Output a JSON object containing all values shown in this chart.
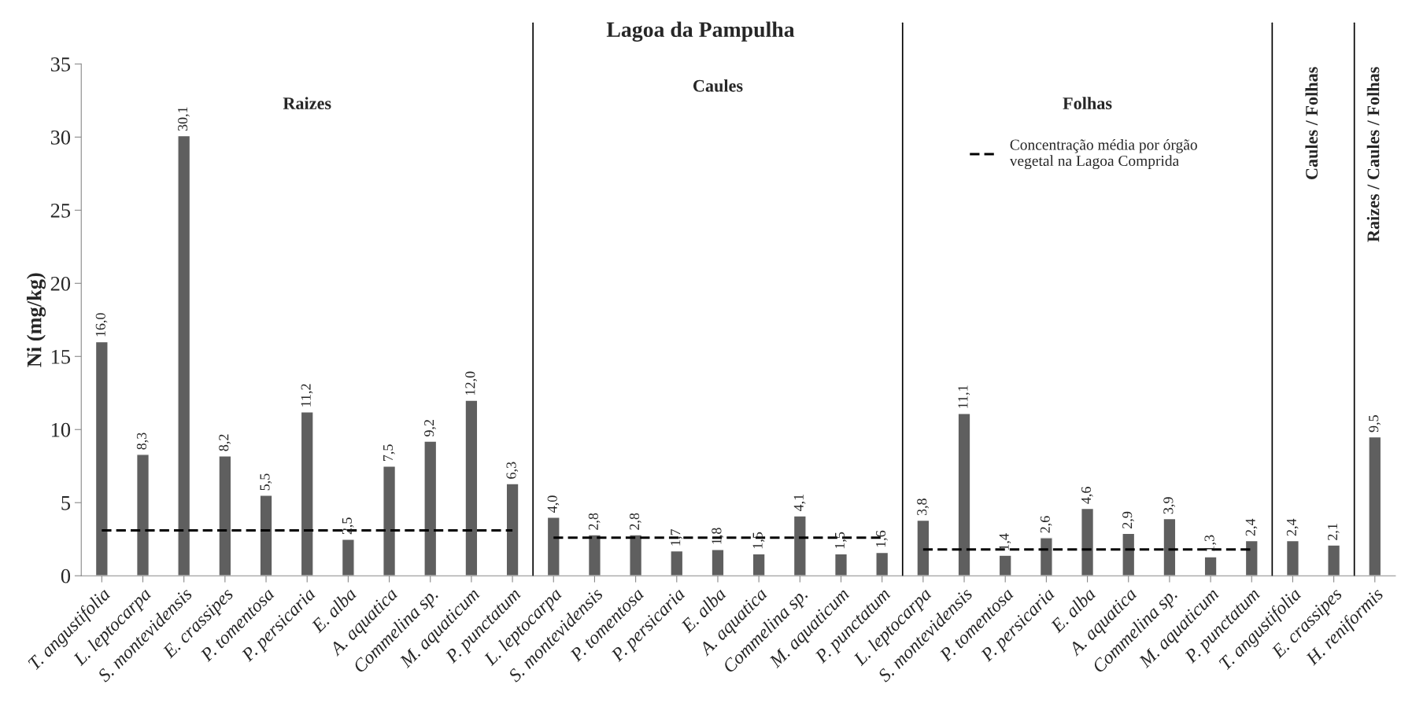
{
  "chart_data": {
    "type": "bar",
    "title": "Lagoa da Pampulha",
    "ylabel": "Ni (mg/kg)",
    "categories": [
      "T. angustifolia",
      "L. leptocarpa",
      "S. montevidensis",
      "E. crassipes",
      "P. tomentosa",
      "P. persicaria",
      "E. alba",
      "A. aquatica",
      "Commelina sp.",
      "M. aquaticum",
      "P. punctatum",
      "L. leptocarpa",
      "S. montevidensis",
      "P. tomentosa",
      "P. persicaria",
      "E. alba",
      "A. aquatica",
      "Commelina sp.",
      "M. aquaticum",
      "P. punctatum",
      "L. leptocarpa",
      "S. montevidensis",
      "P. tomentosa",
      "P. persicaria",
      "E. alba",
      "A. aquatica",
      "Commelina sp.",
      "M. aquaticum",
      "P. punctatum",
      "T. angustifolia",
      "E. crassipes",
      "H. reniformis"
    ],
    "series": [
      {
        "color": "#5f5f5f",
        "values": [
          16.0,
          8.3,
          30.1,
          8.2,
          5.5,
          11.2,
          2.5,
          7.5,
          9.2,
          12.0,
          6.3,
          4.0,
          2.8,
          2.8,
          1.7,
          1.8,
          1.5,
          4.1,
          1.5,
          1.6,
          3.8,
          11.1,
          1.4,
          2.6,
          4.6,
          2.9,
          3.9,
          1.3,
          2.4,
          2.4,
          2.1,
          9.5
        ],
        "value_labels": [
          "16,0",
          "8,3",
          "30,1",
          "8,2",
          "5,5",
          "11,2",
          "2,5",
          "7,5",
          "9,2",
          "12,0",
          "6,3",
          "4,0",
          "2,8",
          "2,8",
          "1,7",
          "1,8",
          "1,5",
          "4,1",
          "1,5",
          "1,6",
          "3,8",
          "11,1",
          "1,4",
          "2,6",
          "4,6",
          "2,9",
          "3,9",
          "1,3",
          "2,4",
          "2,4",
          "2,1",
          "9,5"
        ]
      },
      {
        "type": "line",
        "name": "Concentração média por órgão\nvegetal na Lagoa Comprida",
        "color": "#000000",
        "line_style": "dashed",
        "marker": "none",
        "values": [
          3.1,
          3.1,
          3.1,
          3.1,
          3.1,
          3.1,
          3.1,
          3.1,
          3.1,
          3.1,
          3.1,
          null,
          null,
          null,
          null,
          null,
          null,
          null,
          null,
          null,
          null,
          null,
          null,
          null,
          null,
          null,
          null,
          null,
          null,
          null,
          null,
          null
        ]
      },
      {
        "type": "line",
        "color": "#000000",
        "line_style": "dashed",
        "marker": "none",
        "values": [
          null,
          null,
          null,
          null,
          null,
          null,
          null,
          null,
          null,
          null,
          null,
          2.6,
          2.6,
          2.6,
          2.6,
          2.6,
          2.6,
          2.6,
          2.6,
          2.6,
          null,
          null,
          null,
          null,
          null,
          null,
          null,
          null,
          null,
          null,
          null,
          null
        ]
      },
      {
        "type": "line",
        "color": "#000000",
        "line_style": "dashed",
        "marker": "none",
        "values": [
          null,
          null,
          null,
          null,
          null,
          null,
          null,
          null,
          null,
          null,
          null,
          null,
          null,
          null,
          null,
          null,
          null,
          null,
          null,
          null,
          1.8,
          1.8,
          1.8,
          1.8,
          1.8,
          1.8,
          1.8,
          1.8,
          1.8,
          null,
          null,
          null
        ]
      }
    ],
    "ylim": [
      0,
      35
    ],
    "yticks": [
      0,
      5,
      10,
      15,
      20,
      25,
      30,
      35
    ],
    "grid": false,
    "legend": "top right",
    "annotations": [
      "Raizes",
      "Caules",
      "Folhas",
      "Caules / Folhas",
      "Raizes / Caules / Folhas"
    ]
  }
}
